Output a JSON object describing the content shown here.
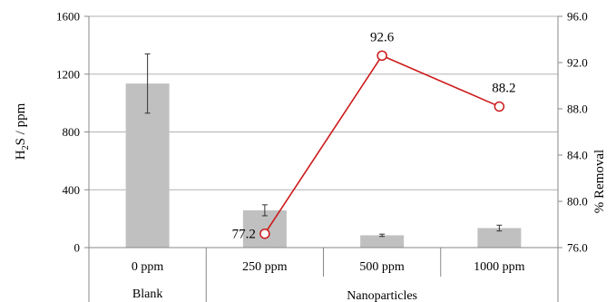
{
  "chart_data": {
    "type": "bar+line",
    "categories": [
      "0 ppm",
      "250 ppm",
      "500 ppm",
      "1000 ppm"
    ],
    "group_labels": [
      "Blank",
      "Nanoparticles"
    ],
    "series": [
      {
        "type": "bar",
        "axis": "left",
        "values": [
          1135,
          258,
          85,
          135
        ],
        "error": [
          205,
          38,
          8,
          20
        ]
      },
      {
        "type": "line",
        "axis": "right",
        "values": [
          null,
          77.2,
          92.6,
          88.2
        ],
        "labels": [
          "",
          "77.2",
          "92.6",
          "88.2"
        ]
      }
    ],
    "ylabel_left": {
      "base": "H",
      "sub": "2",
      "rest": "S / ppm"
    },
    "ylabel_right": "% Removal",
    "ylim_left": [
      0,
      1600
    ],
    "yticks_left": [
      "0",
      "400",
      "800",
      "1200",
      "1600"
    ],
    "ylim_right": [
      76,
      96
    ],
    "yticks_right": [
      "76.0",
      "80.0",
      "84.0",
      "88.0",
      "92.0",
      "96.0"
    ],
    "grid": true,
    "colors": {
      "bar": "#c0c0c0",
      "line": "#cc1a1a",
      "grid": "#b3b3b3",
      "axis": "#888888",
      "error": "#333333"
    }
  }
}
